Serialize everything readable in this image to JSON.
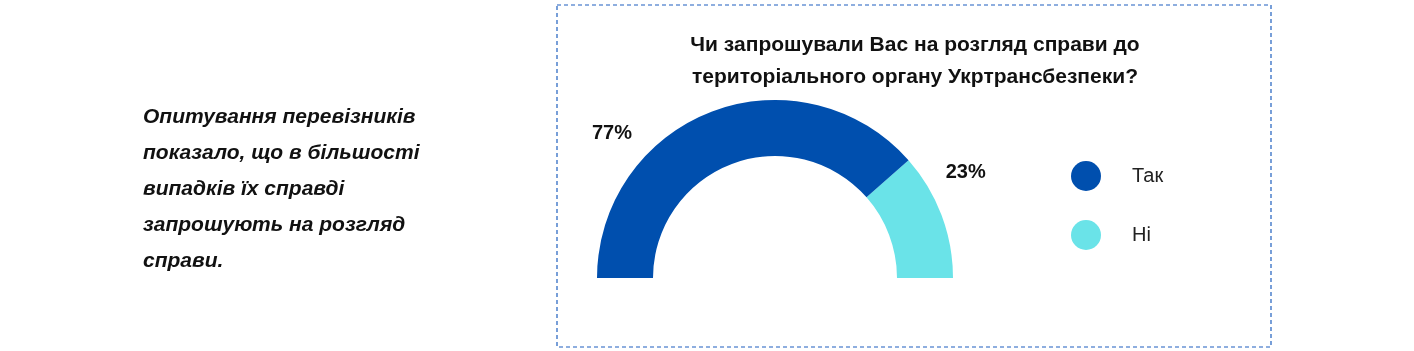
{
  "chart_data": {
    "type": "donut",
    "title": "Чи запрошували Вас на розгляд справи до територіального органу Укртрансбезпеки?",
    "categories": [
      "Так",
      "Ні"
    ],
    "values": [
      77,
      23
    ],
    "colors": [
      "#004fae",
      "#6ae3e8"
    ],
    "value_labels": [
      "77%",
      "23%"
    ],
    "legend": "right",
    "annotations": [
      "Опитування перевізників показало, що в більшості випадків їх справді запрошують на розгляд справи."
    ]
  }
}
